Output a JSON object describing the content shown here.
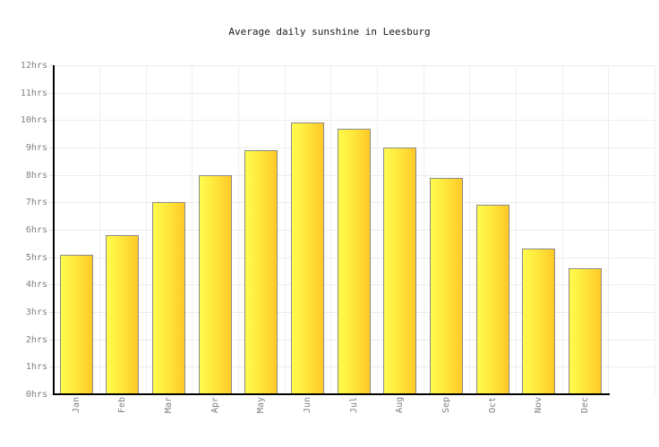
{
  "title": "Average daily sunshine in Leesburg",
  "chart_data": {
    "type": "bar",
    "title": "Average daily sunshine in Leesburg",
    "categories": [
      "Jan",
      "Feb",
      "Mar",
      "Apr",
      "May",
      "Jun",
      "Jul",
      "Aug",
      "Sep",
      "Oct",
      "Nov",
      "Dec"
    ],
    "values": [
      5.1,
      5.8,
      7.0,
      8.0,
      8.9,
      9.9,
      9.7,
      9.0,
      7.9,
      6.9,
      5.3,
      4.6
    ],
    "unit": "hrs",
    "xlabel": "",
    "ylabel": "",
    "ylim": [
      0,
      12
    ],
    "ytick_step": 1,
    "ytick_labels": [
      "0hrs",
      "1hrs",
      "2hrs",
      "3hrs",
      "4hrs",
      "5hrs",
      "6hrs",
      "7hrs",
      "8hrs",
      "9hrs",
      "10hrs",
      "11hrs",
      "12hrs"
    ],
    "grid": true,
    "legend": false,
    "colors": {
      "bar_gradient_left": "#fffb4d",
      "bar_gradient_right": "#ffc928",
      "bar_border": "#8a8a8a",
      "axis": "#000000",
      "gridline": "#ececec",
      "tick_label": "#808080",
      "title_text": "#1a1a1a",
      "background": "#ffffff"
    }
  }
}
